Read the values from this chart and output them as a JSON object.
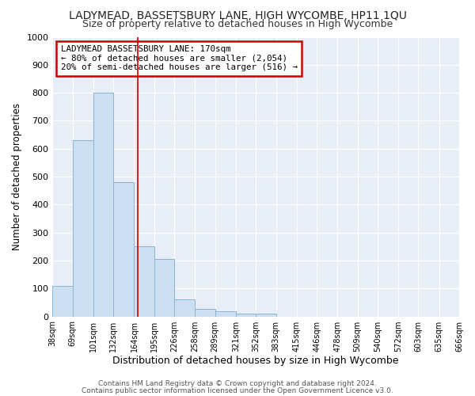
{
  "title1": "LADYMEAD, BASSETSBURY LANE, HIGH WYCOMBE, HP11 1QU",
  "title2": "Size of property relative to detached houses in High Wycombe",
  "xlabel": "Distribution of detached houses by size in High Wycombe",
  "ylabel": "Number of detached properties",
  "bar_heights": [
    110,
    630,
    800,
    480,
    250,
    205,
    60,
    28,
    18,
    10,
    10,
    0,
    0,
    0,
    0,
    0,
    0,
    0,
    0,
    0
  ],
  "bin_edges": [
    38,
    69,
    101,
    132,
    164,
    195,
    226,
    258,
    289,
    321,
    352,
    383,
    415,
    446,
    478,
    509,
    540,
    572,
    603,
    635,
    666
  ],
  "tick_labels": [
    "38sqm",
    "69sqm",
    "101sqm",
    "132sqm",
    "164sqm",
    "195sqm",
    "226sqm",
    "258sqm",
    "289sqm",
    "321sqm",
    "352sqm",
    "383sqm",
    "415sqm",
    "446sqm",
    "478sqm",
    "509sqm",
    "540sqm",
    "572sqm",
    "603sqm",
    "635sqm",
    "666sqm"
  ],
  "bar_color": "#ccdff0",
  "bar_edge_color": "#8ab4d4",
  "redline_x": 170,
  "ylim": [
    0,
    1000
  ],
  "yticks": [
    0,
    100,
    200,
    300,
    400,
    500,
    600,
    700,
    800,
    900,
    1000
  ],
  "annotation_title": "LADYMEAD BASSETSBURY LANE: 170sqm",
  "annotation_line1": "← 80% of detached houses are smaller (2,054)",
  "annotation_line2": "20% of semi-detached houses are larger (516) →",
  "annotation_box_color": "#ffffff",
  "annotation_box_edge": "#cc0000",
  "footer1": "Contains HM Land Registry data © Crown copyright and database right 2024.",
  "footer2": "Contains public sector information licensed under the Open Government Licence v3.0.",
  "fig_background": "#ffffff",
  "plot_background": "#e8eef8",
  "grid_color": "#ffffff",
  "title1_fontsize": 10,
  "title2_fontsize": 9
}
